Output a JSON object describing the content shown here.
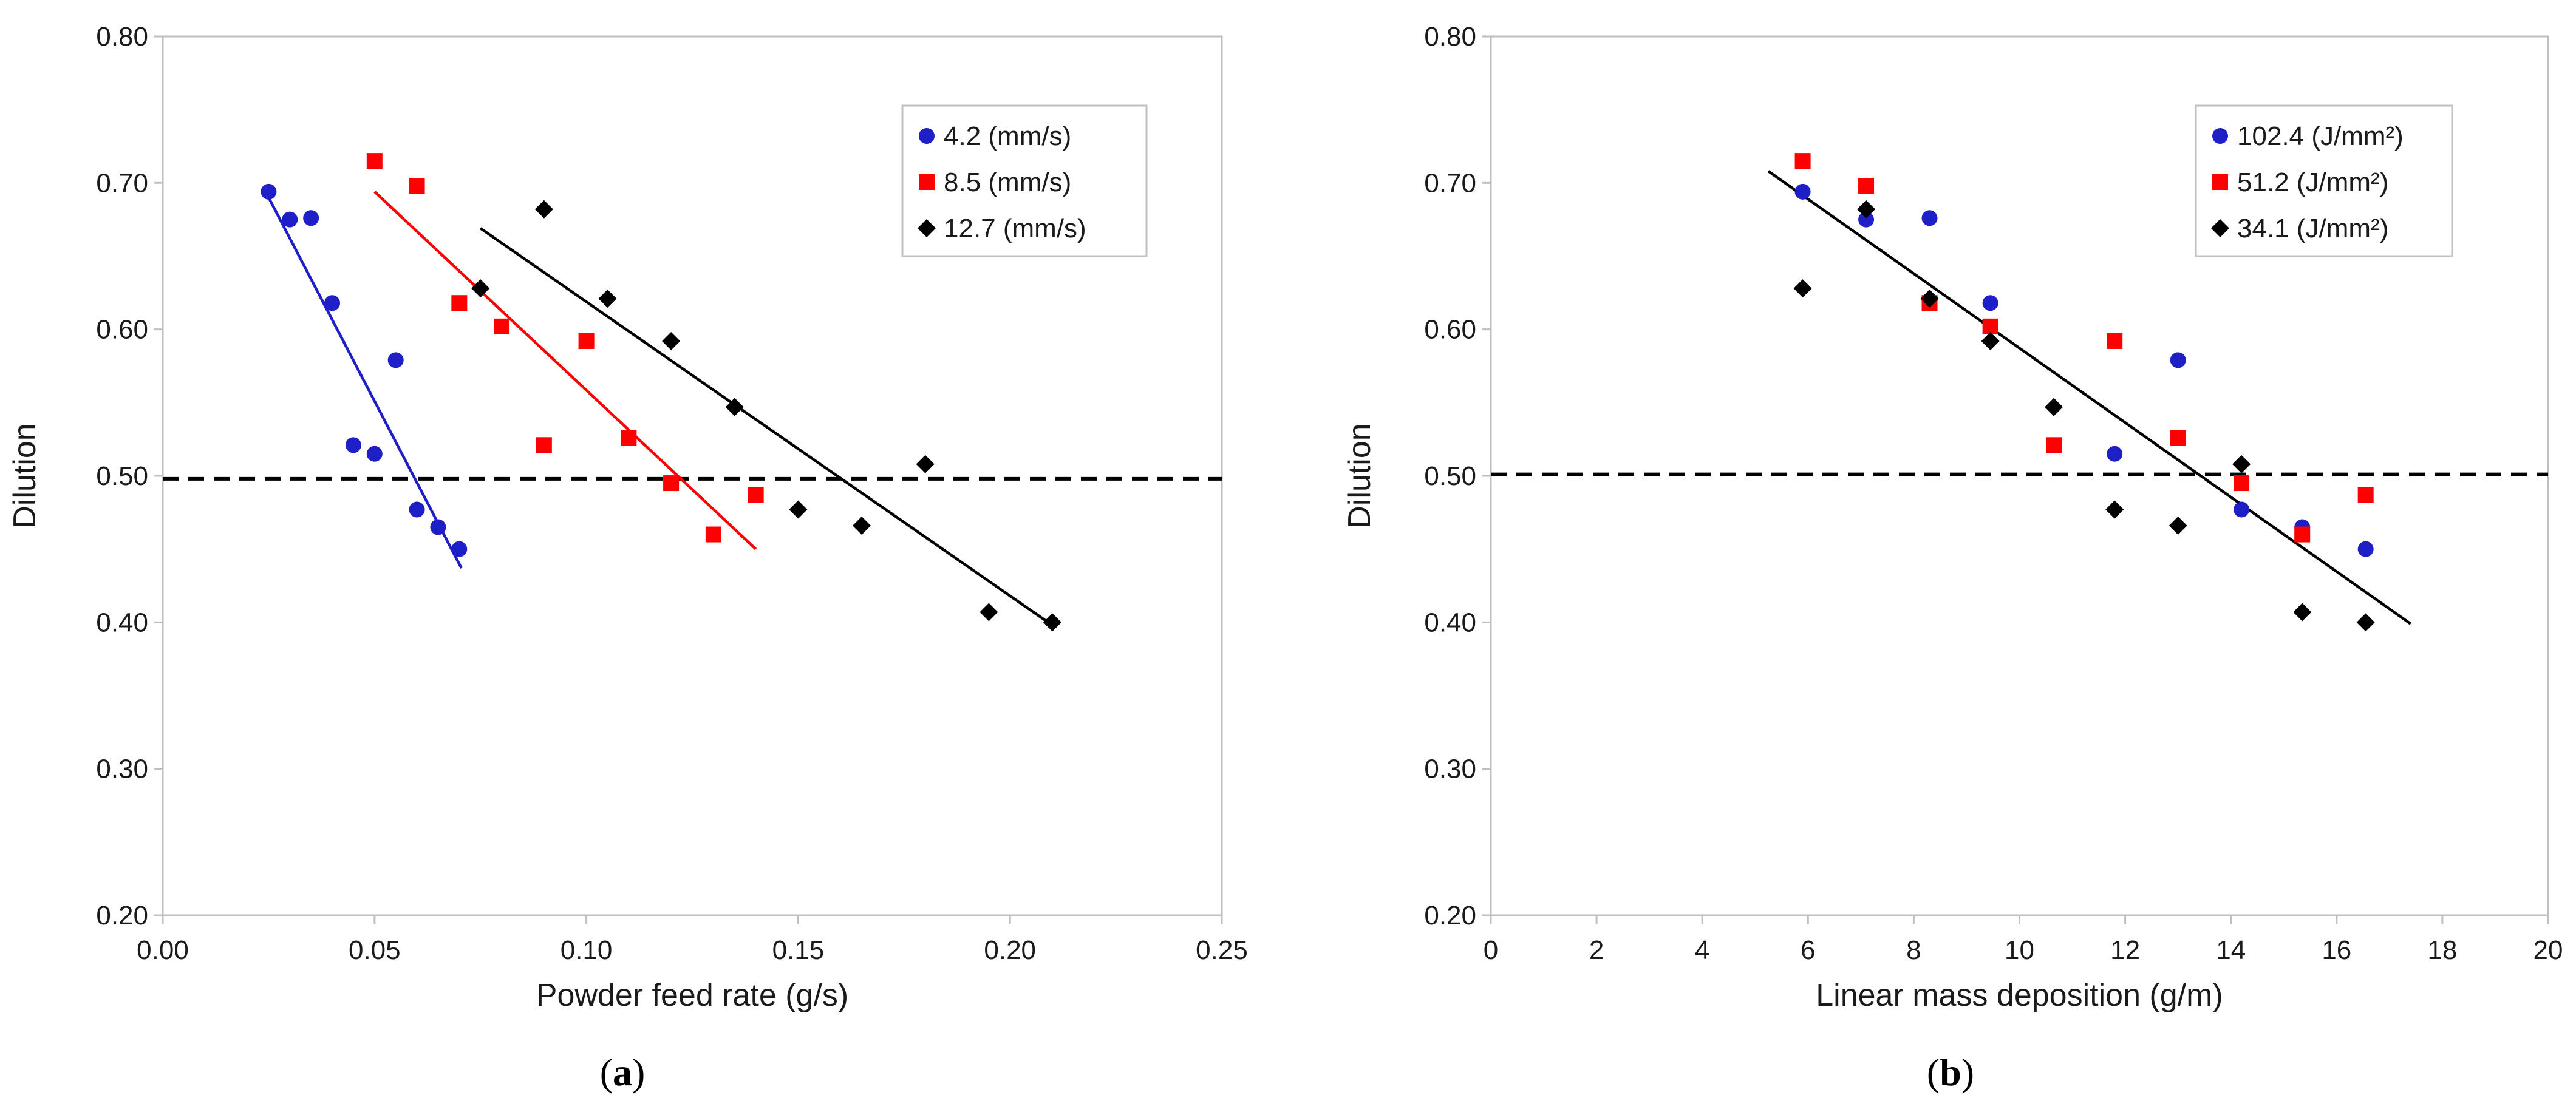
{
  "chart_data": [
    {
      "type": "scatter",
      "panel_label": "a",
      "xlabel": "Powder feed rate (g/s)",
      "ylabel": "Dilution",
      "xlim": [
        0,
        0.25
      ],
      "ylim": [
        0.2,
        0.8
      ],
      "xticks": [
        "0.00",
        "0.05",
        "0.10",
        "0.15",
        "0.20",
        "0.25"
      ],
      "yticks": [
        "0.20",
        "0.30",
        "0.40",
        "0.50",
        "0.60",
        "0.70",
        "0.80"
      ],
      "grid": false,
      "legend_position": "top-right",
      "reference_line": {
        "y": 0.498,
        "style": "dashed"
      },
      "series": [
        {
          "name": "4.2 (mm/s)",
          "marker": "circle",
          "color": "#1f1fc8",
          "points": [
            [
              0.025,
              0.694
            ],
            [
              0.03,
              0.675
            ],
            [
              0.035,
              0.676
            ],
            [
              0.04,
              0.618
            ],
            [
              0.045,
              0.521
            ],
            [
              0.05,
              0.515
            ],
            [
              0.055,
              0.579
            ],
            [
              0.06,
              0.477
            ],
            [
              0.065,
              0.465
            ],
            [
              0.07,
              0.45
            ]
          ],
          "trend": [
            [
              0.025,
              0.69
            ],
            [
              0.0705,
              0.437
            ]
          ]
        },
        {
          "name": "8.5 (mm/s)",
          "marker": "square",
          "color": "#ff0000",
          "points": [
            [
              0.05,
              0.715
            ],
            [
              0.06,
              0.698
            ],
            [
              0.07,
              0.618
            ],
            [
              0.08,
              0.602
            ],
            [
              0.09,
              0.521
            ],
            [
              0.1,
              0.592
            ],
            [
              0.11,
              0.526
            ],
            [
              0.12,
              0.495
            ],
            [
              0.13,
              0.46
            ],
            [
              0.14,
              0.487
            ]
          ],
          "trend": [
            [
              0.05,
              0.694
            ],
            [
              0.14,
              0.45
            ]
          ]
        },
        {
          "name": "12.7 (mm/s)",
          "marker": "diamond",
          "color": "#000000",
          "points": [
            [
              0.075,
              0.628
            ],
            [
              0.09,
              0.682
            ],
            [
              0.105,
              0.621
            ],
            [
              0.12,
              0.592
            ],
            [
              0.135,
              0.547
            ],
            [
              0.15,
              0.477
            ],
            [
              0.165,
              0.466
            ],
            [
              0.18,
              0.508
            ],
            [
              0.195,
              0.407
            ],
            [
              0.21,
              0.4
            ]
          ],
          "trend": [
            [
              0.075,
              0.669
            ],
            [
              0.21,
              0.398
            ]
          ]
        }
      ]
    },
    {
      "type": "scatter",
      "panel_label": "b",
      "xlabel": "Linear mass deposition (g/m)",
      "ylabel": "Dilution",
      "xlim": [
        0,
        20
      ],
      "ylim": [
        0.2,
        0.8
      ],
      "xticks": [
        "0",
        "2",
        "4",
        "6",
        "8",
        "10",
        "12",
        "14",
        "16",
        "18",
        "20"
      ],
      "yticks": [
        "0.20",
        "0.30",
        "0.40",
        "0.50",
        "0.60",
        "0.70",
        "0.80"
      ],
      "grid": false,
      "legend_position": "top-right",
      "reference_line": {
        "y": 0.501,
        "style": "dashed"
      },
      "series": [
        {
          "name": "102.4 (J/mm²)",
          "marker": "circle",
          "color": "#1f1fc8",
          "points": [
            [
              5.9,
              0.694
            ],
            [
              7.1,
              0.675
            ],
            [
              8.3,
              0.676
            ],
            [
              9.45,
              0.618
            ],
            [
              11.8,
              0.515
            ],
            [
              13.0,
              0.579
            ],
            [
              14.2,
              0.477
            ],
            [
              15.35,
              0.465
            ],
            [
              16.55,
              0.45
            ]
          ]
        },
        {
          "name": "51.2 (J/mm²)",
          "marker": "square",
          "color": "#ff0000",
          "points": [
            [
              5.9,
              0.715
            ],
            [
              7.1,
              0.698
            ],
            [
              8.3,
              0.618
            ],
            [
              9.45,
              0.602
            ],
            [
              10.65,
              0.521
            ],
            [
              11.8,
              0.592
            ],
            [
              13.0,
              0.526
            ],
            [
              14.2,
              0.495
            ],
            [
              15.35,
              0.46
            ],
            [
              16.55,
              0.487
            ]
          ]
        },
        {
          "name": "34.1 (J/mm²)",
          "marker": "diamond",
          "color": "#000000",
          "points": [
            [
              5.9,
              0.628
            ],
            [
              7.1,
              0.682
            ],
            [
              8.3,
              0.621
            ],
            [
              9.45,
              0.592
            ],
            [
              10.65,
              0.547
            ],
            [
              11.8,
              0.477
            ],
            [
              13.0,
              0.466
            ],
            [
              14.2,
              0.508
            ],
            [
              15.35,
              0.407
            ],
            [
              16.55,
              0.4
            ]
          ]
        }
      ],
      "trend": [
        [
          5.25,
          0.708
        ],
        [
          17.4,
          0.399
        ]
      ]
    }
  ]
}
